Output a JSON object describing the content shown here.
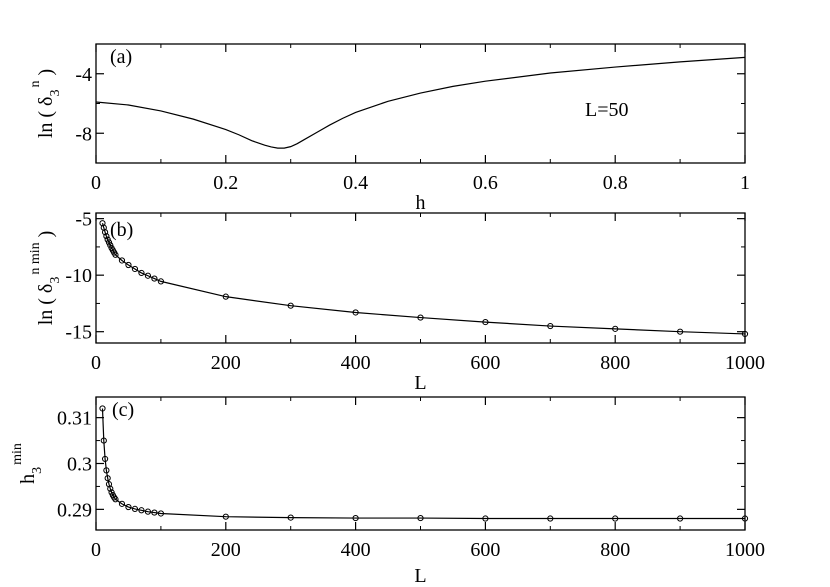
{
  "chart_data": [
    {
      "type": "line",
      "panel_label": "(a)",
      "annotation": "L=50",
      "xlabel": "h",
      "ylabel": "ln ( δ₃ⁿ )",
      "ylabel_parts": {
        "prefix": "ln ( δ",
        "sub": "3",
        "sup": "n",
        "suffix": " )"
      },
      "xlim": [
        0,
        1
      ],
      "ylim": [
        -10,
        -2
      ],
      "xticks": [
        0,
        0.2,
        0.4,
        0.6,
        0.8,
        1
      ],
      "xtick_labels": [
        "0",
        "0.2",
        "0.4",
        "0.6",
        "0.8",
        "1"
      ],
      "yticks": [
        -8,
        -4
      ],
      "ytick_labels": [
        "-8",
        "-4"
      ],
      "series": [
        {
          "markers": false,
          "x": [
            0,
            0.05,
            0.1,
            0.15,
            0.2,
            0.22,
            0.24,
            0.26,
            0.27,
            0.28,
            0.29,
            0.3,
            0.31,
            0.32,
            0.34,
            0.36,
            0.38,
            0.4,
            0.45,
            0.5,
            0.55,
            0.6,
            0.7,
            0.8,
            0.9,
            1.0
          ],
          "y": [
            -5.9,
            -6.1,
            -6.5,
            -7.05,
            -7.75,
            -8.1,
            -8.5,
            -8.8,
            -8.92,
            -9.0,
            -9.0,
            -8.9,
            -8.7,
            -8.45,
            -7.95,
            -7.45,
            -7.0,
            -6.6,
            -5.85,
            -5.3,
            -4.85,
            -4.5,
            -3.95,
            -3.55,
            -3.2,
            -2.9
          ]
        }
      ]
    },
    {
      "type": "line",
      "panel_label": "(b)",
      "xlabel": "L",
      "ylabel": "ln ( δ₃ⁿ ᵐⁱⁿ )",
      "ylabel_parts": {
        "prefix": "ln ( δ",
        "sub": "3",
        "sup": "n min",
        "suffix": " )"
      },
      "xlim": [
        0,
        1000
      ],
      "ylim": [
        -16,
        -4.5
      ],
      "xticks": [
        0,
        200,
        400,
        600,
        800,
        1000
      ],
      "xtick_labels": [
        "0",
        "200",
        "400",
        "600",
        "800",
        "1000"
      ],
      "yticks": [
        -15,
        -10,
        -5
      ],
      "ytick_labels": [
        "-15",
        "-10",
        "-5"
      ],
      "series": [
        {
          "markers": true,
          "x": [
            10,
            12,
            14,
            16,
            18,
            20,
            22,
            24,
            26,
            28,
            30,
            40,
            50,
            60,
            70,
            80,
            90,
            100,
            200,
            300,
            400,
            500,
            600,
            700,
            800,
            900,
            1000
          ],
          "y": [
            -5.4,
            -5.8,
            -6.2,
            -6.55,
            -6.85,
            -7.1,
            -7.35,
            -7.6,
            -7.8,
            -8.0,
            -8.2,
            -8.7,
            -9.1,
            -9.45,
            -9.8,
            -10.05,
            -10.3,
            -10.55,
            -11.9,
            -12.7,
            -13.3,
            -13.75,
            -14.15,
            -14.5,
            -14.75,
            -15.0,
            -15.2
          ]
        }
      ]
    },
    {
      "type": "line",
      "panel_label": "(c)",
      "xlabel": "L",
      "ylabel": "h₃ᵐⁱⁿ",
      "ylabel_parts": {
        "prefix": "h",
        "sub": "3",
        "sup": "min",
        "suffix": ""
      },
      "xlim": [
        0,
        1000
      ],
      "ylim": [
        0.2855,
        0.3145
      ],
      "xticks": [
        0,
        200,
        400,
        600,
        800,
        1000
      ],
      "xtick_labels": [
        "0",
        "200",
        "400",
        "600",
        "800",
        "1000"
      ],
      "yticks": [
        0.29,
        0.3,
        0.31
      ],
      "ytick_labels": [
        "0.29",
        "0.3",
        "0.31"
      ],
      "series": [
        {
          "markers": true,
          "x": [
            10,
            12,
            14,
            16,
            18,
            20,
            22,
            24,
            26,
            28,
            30,
            40,
            50,
            60,
            70,
            80,
            90,
            100,
            200,
            300,
            400,
            500,
            600,
            700,
            800,
            900,
            1000
          ],
          "y": [
            0.312,
            0.305,
            0.301,
            0.2985,
            0.2968,
            0.2955,
            0.2945,
            0.2937,
            0.2931,
            0.2926,
            0.2922,
            0.2912,
            0.2905,
            0.2901,
            0.2898,
            0.2895,
            0.2893,
            0.2891,
            0.2884,
            0.2882,
            0.2881,
            0.2881,
            0.288,
            0.288,
            0.288,
            0.288,
            0.288
          ]
        }
      ]
    }
  ]
}
